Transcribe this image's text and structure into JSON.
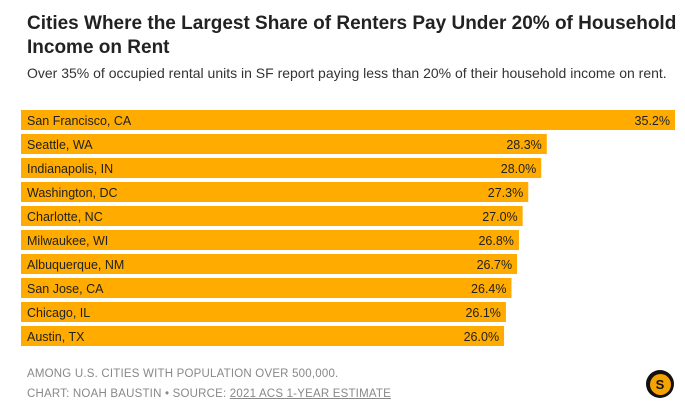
{
  "chart_data": {
    "type": "bar",
    "orientation": "horizontal",
    "title": "Cities Where the Largest Share of Renters Pay Under 20% of Household Income on Rent",
    "subtitle": "Over 35% of occupied rental units in SF report paying less than 20% of their household income on rent.",
    "categories": [
      "San Francisco, CA",
      "Seattle, WA",
      "Indianapolis, IN",
      "Washington, DC",
      "Charlotte, NC",
      "Milwaukee, WI",
      "Albuquerque, NM",
      "San Jose, CA",
      "Chicago, IL",
      "Austin, TX"
    ],
    "values": [
      35.2,
      28.3,
      28.0,
      27.3,
      27.0,
      26.8,
      26.7,
      26.4,
      26.1,
      26.0
    ],
    "value_labels": [
      "35.2%",
      "28.3%",
      "28.0%",
      "27.3%",
      "27.0%",
      "26.8%",
      "26.7%",
      "26.4%",
      "26.1%",
      "26.0%"
    ],
    "xlabel": "",
    "ylabel": "",
    "xlim": [
      0,
      35.2
    ],
    "bar_color": "#ffab00"
  },
  "footer": {
    "note": "AMONG U.S. CITIES WITH POPULATION OVER 500,000.",
    "credit_prefix": "CHART: NOAH BAUSTIN • SOURCE: ",
    "source_link": "2021 ACS 1-YEAR ESTIMATE"
  },
  "logo": {
    "letter": "S",
    "color": "#f5a300"
  }
}
